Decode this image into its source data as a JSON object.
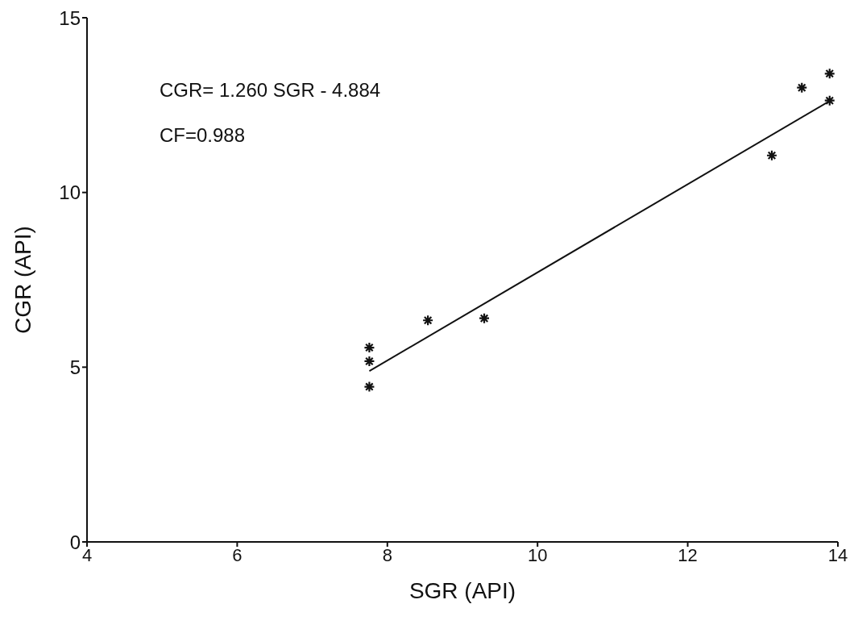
{
  "chart_data": {
    "type": "scatter",
    "xlabel": "SGR (API)",
    "ylabel": "CGR (API)",
    "xlim": [
      4,
      14
    ],
    "xticks": [
      4,
      6,
      8,
      10,
      12,
      14
    ],
    "ylim": [
      0,
      15
    ],
    "yticks": [
      0,
      5,
      10,
      15
    ],
    "grid": false,
    "legend": false,
    "annotations": [
      "CGR= 1.260 SGR - 4.884",
      "CF=0.988"
    ],
    "series": [
      {
        "marker": "cross",
        "color": "#111111",
        "x": [
          7.76,
          7.76,
          7.76,
          8.54,
          9.29,
          13.12,
          13.52,
          13.89,
          13.89
        ],
        "values": [
          5.56,
          5.17,
          4.44,
          6.34,
          6.4,
          11.06,
          13.0,
          13.4,
          12.63
        ]
      },
      {
        "type": "line",
        "marker": "none",
        "color": "#111111",
        "x": [
          7.76,
          13.9
        ],
        "values": [
          4.89,
          12.63
        ]
      }
    ]
  }
}
